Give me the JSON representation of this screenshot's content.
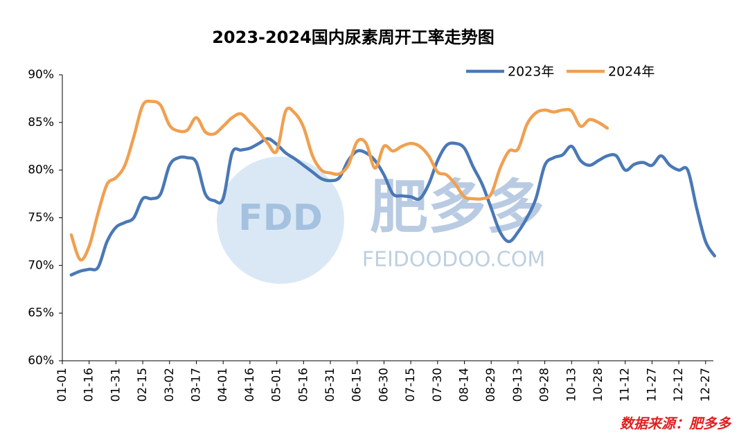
{
  "chart_data": {
    "type": "line",
    "title": "2023-2024国内尿素周开工率走势图",
    "source": "数据来源：肥多多",
    "watermark": {
      "logo": "FDD",
      "name": "肥多多",
      "url": "FEIDOODOO.COM"
    },
    "legend": "top-right",
    "categories": [
      "01-01",
      null,
      null,
      "01-16",
      null,
      null,
      "01-31",
      null,
      null,
      "02-15",
      null,
      null,
      "03-02",
      null,
      null,
      "03-17",
      null,
      null,
      "04-01",
      null,
      null,
      "04-16",
      null,
      null,
      "05-01",
      null,
      null,
      "05-16",
      null,
      null,
      "05-31",
      null,
      null,
      "06-15",
      null,
      null,
      "06-30",
      null,
      null,
      "07-15",
      null,
      null,
      "07-30",
      null,
      null,
      "08-14",
      null,
      null,
      "08-29",
      null,
      null,
      "09-13",
      null,
      null,
      "09-28",
      null,
      null,
      "10-13",
      null,
      null,
      "10-28",
      null,
      null,
      "11-12",
      null,
      null,
      "11-27",
      null,
      null,
      "12-12",
      null,
      null,
      "12-27",
      null
    ],
    "series": [
      {
        "name": "2023年",
        "color": "#4a78b6",
        "values": [
          null,
          69.0,
          69.4,
          69.6,
          69.8,
          72.5,
          74.0,
          74.5,
          75.0,
          77.0,
          77.0,
          77.5,
          80.5,
          81.3,
          81.3,
          80.8,
          77.5,
          76.8,
          77.0,
          81.8,
          82.1,
          82.3,
          82.8,
          83.3,
          82.7,
          81.8,
          81.2,
          80.5,
          79.8,
          79.1,
          78.9,
          79.2,
          81.0,
          82.0,
          81.8,
          81.0,
          79.5,
          77.5,
          77.3,
          77.2,
          77.0,
          78.5,
          81.0,
          82.6,
          82.8,
          82.3,
          80.3,
          78.5,
          76.0,
          73.5,
          72.5,
          73.5,
          75.0,
          77.0,
          80.5,
          81.3,
          81.6,
          82.5,
          81.0,
          80.5,
          81.0,
          81.5,
          81.5,
          80.0,
          80.6,
          80.8,
          80.5,
          81.5,
          80.5,
          80.0,
          80.0,
          76.0,
          72.5,
          71.0
        ]
      },
      {
        "name": "2024年",
        "color": "#f0a050",
        "values": [
          null,
          73.2,
          70.6,
          72.0,
          75.5,
          78.5,
          79.2,
          80.5,
          83.5,
          86.8,
          87.2,
          86.8,
          84.7,
          84.1,
          84.2,
          85.5,
          84.0,
          83.8,
          84.6,
          85.5,
          85.9,
          85.0,
          84.0,
          82.8,
          82.0,
          86.2,
          86.0,
          84.5,
          81.5,
          80.0,
          79.7,
          79.6,
          80.5,
          83.0,
          82.8,
          80.2,
          82.5,
          82.0,
          82.5,
          82.8,
          82.5,
          81.5,
          79.8,
          79.5,
          78.5,
          77.2,
          77.0,
          77.0,
          77.5,
          80.2,
          82.0,
          82.2,
          84.8,
          86.0,
          86.3,
          86.1,
          86.3,
          86.2,
          84.6,
          85.3,
          85.0,
          84.4,
          null,
          null,
          null,
          null,
          null,
          null,
          null,
          null,
          null,
          null,
          null,
          null
        ]
      }
    ],
    "ylim": [
      60,
      90
    ],
    "yticks": [
      {
        "value": 60,
        "label": "60%"
      },
      {
        "value": 65,
        "label": "65%"
      },
      {
        "value": 70,
        "label": "70%"
      },
      {
        "value": 75,
        "label": "75%"
      },
      {
        "value": 80,
        "label": "80%"
      },
      {
        "value": 85,
        "label": "85%"
      },
      {
        "value": 90,
        "label": "90%"
      }
    ],
    "grid": false
  }
}
